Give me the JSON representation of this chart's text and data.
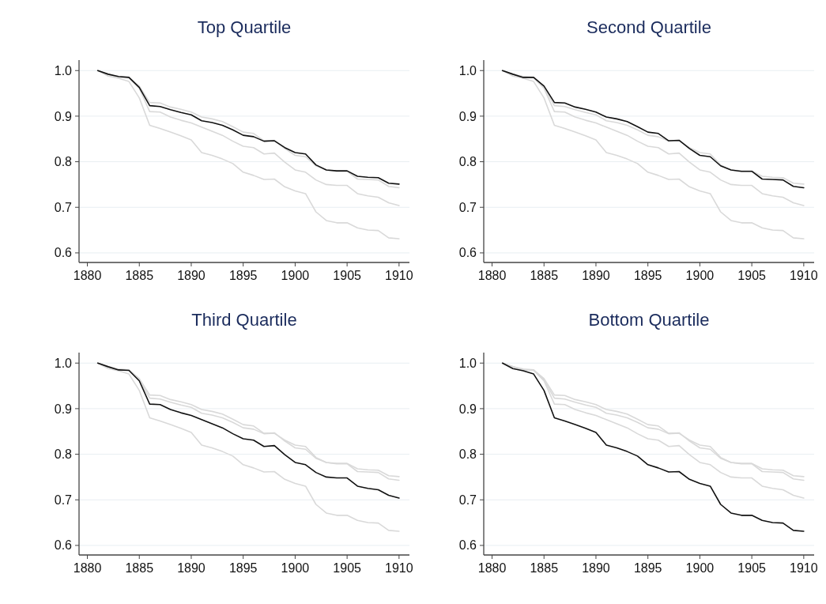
{
  "chart_data": [
    {
      "type": "line",
      "title": "Top Quartile",
      "x": [
        1881,
        1882,
        1883,
        1884,
        1885,
        1886,
        1887,
        1888,
        1889,
        1890,
        1891,
        1892,
        1893,
        1894,
        1895,
        1896,
        1897,
        1898,
        1899,
        1900,
        1901,
        1902,
        1903,
        1904,
        1905,
        1906,
        1907,
        1908,
        1909,
        1910
      ],
      "xlim": [
        1879.2,
        1911
      ],
      "xticks": [
        1880,
        1885,
        1890,
        1895,
        1900,
        1905,
        1910
      ],
      "ylim": [
        0.579,
        1.023
      ],
      "yticks": [
        {
          "value": 0.6,
          "label": "0.6"
        },
        {
          "value": 0.7,
          "label": "0.7"
        },
        {
          "value": 0.8,
          "label": "0.8"
        },
        {
          "value": 0.9,
          "label": "0.9"
        },
        {
          "value": 1,
          "label": "1.0"
        }
      ],
      "grid": "y",
      "series": [
        {
          "color": "#d9d9d9",
          "values": [
            1.0,
            0.992,
            0.985,
            0.985,
            0.966,
            0.93,
            0.929,
            0.92,
            0.915,
            0.909,
            0.898,
            0.894,
            0.888,
            0.877,
            0.865,
            0.862,
            0.846,
            0.847,
            0.829,
            0.814,
            0.811,
            0.791,
            0.782,
            0.779,
            0.779,
            0.762,
            0.761,
            0.76,
            0.746,
            0.743
          ]
        },
        {
          "color": "#d9d9d9",
          "values": [
            1.0,
            0.992,
            0.985,
            0.984,
            0.961,
            0.91,
            0.909,
            0.898,
            0.891,
            0.885,
            0.876,
            0.867,
            0.858,
            0.845,
            0.834,
            0.831,
            0.817,
            0.819,
            0.799,
            0.782,
            0.777,
            0.76,
            0.75,
            0.748,
            0.748,
            0.73,
            0.725,
            0.722,
            0.71,
            0.704
          ]
        },
        {
          "color": "#d9d9d9",
          "values": [
            1.0,
            0.988,
            0.983,
            0.976,
            0.94,
            0.88,
            0.873,
            0.865,
            0.857,
            0.848,
            0.82,
            0.814,
            0.806,
            0.796,
            0.777,
            0.77,
            0.761,
            0.762,
            0.745,
            0.736,
            0.73,
            0.69,
            0.671,
            0.666,
            0.666,
            0.655,
            0.65,
            0.649,
            0.633,
            0.631
          ]
        },
        {
          "color": "#111111",
          "values": [
            1.0,
            0.992,
            0.987,
            0.985,
            0.963,
            0.923,
            0.921,
            0.914,
            0.908,
            0.903,
            0.89,
            0.886,
            0.88,
            0.87,
            0.858,
            0.855,
            0.845,
            0.846,
            0.831,
            0.82,
            0.817,
            0.793,
            0.782,
            0.78,
            0.78,
            0.768,
            0.766,
            0.765,
            0.753,
            0.751
          ]
        }
      ]
    },
    {
      "type": "line",
      "title": "Second Quartile",
      "x": [
        1881,
        1882,
        1883,
        1884,
        1885,
        1886,
        1887,
        1888,
        1889,
        1890,
        1891,
        1892,
        1893,
        1894,
        1895,
        1896,
        1897,
        1898,
        1899,
        1900,
        1901,
        1902,
        1903,
        1904,
        1905,
        1906,
        1907,
        1908,
        1909,
        1910
      ],
      "xlim": [
        1879.2,
        1911
      ],
      "xticks": [
        1880,
        1885,
        1890,
        1895,
        1900,
        1905,
        1910
      ],
      "ylim": [
        0.579,
        1.023
      ],
      "yticks": [
        {
          "value": 0.6,
          "label": "0.6"
        },
        {
          "value": 0.7,
          "label": "0.7"
        },
        {
          "value": 0.8,
          "label": "0.8"
        },
        {
          "value": 0.9,
          "label": "0.9"
        },
        {
          "value": 1,
          "label": "1.0"
        }
      ],
      "grid": "y",
      "series": [
        {
          "color": "#d9d9d9",
          "values": [
            1.0,
            0.992,
            0.987,
            0.985,
            0.963,
            0.923,
            0.921,
            0.914,
            0.908,
            0.903,
            0.89,
            0.886,
            0.88,
            0.87,
            0.858,
            0.855,
            0.845,
            0.846,
            0.831,
            0.82,
            0.817,
            0.793,
            0.782,
            0.78,
            0.78,
            0.768,
            0.766,
            0.765,
            0.753,
            0.751
          ]
        },
        {
          "color": "#d9d9d9",
          "values": [
            1.0,
            0.992,
            0.985,
            0.984,
            0.961,
            0.91,
            0.909,
            0.898,
            0.891,
            0.885,
            0.876,
            0.867,
            0.858,
            0.845,
            0.834,
            0.831,
            0.817,
            0.819,
            0.799,
            0.782,
            0.777,
            0.76,
            0.75,
            0.748,
            0.748,
            0.73,
            0.725,
            0.722,
            0.71,
            0.704
          ]
        },
        {
          "color": "#d9d9d9",
          "values": [
            1.0,
            0.988,
            0.983,
            0.976,
            0.94,
            0.88,
            0.873,
            0.865,
            0.857,
            0.848,
            0.82,
            0.814,
            0.806,
            0.796,
            0.777,
            0.77,
            0.761,
            0.762,
            0.745,
            0.736,
            0.73,
            0.69,
            0.671,
            0.666,
            0.666,
            0.655,
            0.65,
            0.649,
            0.633,
            0.631
          ]
        },
        {
          "color": "#111111",
          "values": [
            1.0,
            0.992,
            0.985,
            0.985,
            0.966,
            0.93,
            0.929,
            0.92,
            0.915,
            0.909,
            0.898,
            0.894,
            0.888,
            0.877,
            0.865,
            0.862,
            0.846,
            0.847,
            0.829,
            0.814,
            0.811,
            0.791,
            0.782,
            0.779,
            0.779,
            0.762,
            0.761,
            0.76,
            0.746,
            0.743
          ]
        }
      ]
    },
    {
      "type": "line",
      "title": "Third Quartile",
      "x": [
        1881,
        1882,
        1883,
        1884,
        1885,
        1886,
        1887,
        1888,
        1889,
        1890,
        1891,
        1892,
        1893,
        1894,
        1895,
        1896,
        1897,
        1898,
        1899,
        1900,
        1901,
        1902,
        1903,
        1904,
        1905,
        1906,
        1907,
        1908,
        1909,
        1910
      ],
      "xlim": [
        1879.2,
        1911
      ],
      "xticks": [
        1880,
        1885,
        1890,
        1895,
        1900,
        1905,
        1910
      ],
      "ylim": [
        0.579,
        1.023
      ],
      "yticks": [
        {
          "value": 0.6,
          "label": "0.6"
        },
        {
          "value": 0.7,
          "label": "0.7"
        },
        {
          "value": 0.8,
          "label": "0.8"
        },
        {
          "value": 0.9,
          "label": "0.9"
        },
        {
          "value": 1,
          "label": "1.0"
        }
      ],
      "grid": "y",
      "series": [
        {
          "color": "#d9d9d9",
          "values": [
            1.0,
            0.992,
            0.987,
            0.985,
            0.963,
            0.923,
            0.921,
            0.914,
            0.908,
            0.903,
            0.89,
            0.886,
            0.88,
            0.87,
            0.858,
            0.855,
            0.845,
            0.846,
            0.831,
            0.82,
            0.817,
            0.793,
            0.782,
            0.78,
            0.78,
            0.768,
            0.766,
            0.765,
            0.753,
            0.751
          ]
        },
        {
          "color": "#d9d9d9",
          "values": [
            1.0,
            0.992,
            0.985,
            0.985,
            0.966,
            0.93,
            0.929,
            0.92,
            0.915,
            0.909,
            0.898,
            0.894,
            0.888,
            0.877,
            0.865,
            0.862,
            0.846,
            0.847,
            0.829,
            0.814,
            0.811,
            0.791,
            0.782,
            0.779,
            0.779,
            0.762,
            0.761,
            0.76,
            0.746,
            0.743
          ]
        },
        {
          "color": "#d9d9d9",
          "values": [
            1.0,
            0.988,
            0.983,
            0.976,
            0.94,
            0.88,
            0.873,
            0.865,
            0.857,
            0.848,
            0.82,
            0.814,
            0.806,
            0.796,
            0.777,
            0.77,
            0.761,
            0.762,
            0.745,
            0.736,
            0.73,
            0.69,
            0.671,
            0.666,
            0.666,
            0.655,
            0.65,
            0.649,
            0.633,
            0.631
          ]
        },
        {
          "color": "#111111",
          "values": [
            1.0,
            0.992,
            0.985,
            0.984,
            0.961,
            0.91,
            0.909,
            0.898,
            0.891,
            0.885,
            0.876,
            0.867,
            0.858,
            0.845,
            0.834,
            0.831,
            0.817,
            0.819,
            0.799,
            0.782,
            0.777,
            0.76,
            0.75,
            0.748,
            0.748,
            0.73,
            0.725,
            0.722,
            0.71,
            0.704
          ]
        }
      ]
    },
    {
      "type": "line",
      "title": "Bottom Quartile",
      "x": [
        1881,
        1882,
        1883,
        1884,
        1885,
        1886,
        1887,
        1888,
        1889,
        1890,
        1891,
        1892,
        1893,
        1894,
        1895,
        1896,
        1897,
        1898,
        1899,
        1900,
        1901,
        1902,
        1903,
        1904,
        1905,
        1906,
        1907,
        1908,
        1909,
        1910
      ],
      "xlim": [
        1879.2,
        1911
      ],
      "xticks": [
        1880,
        1885,
        1890,
        1895,
        1900,
        1905,
        1910
      ],
      "ylim": [
        0.579,
        1.023
      ],
      "yticks": [
        {
          "value": 0.6,
          "label": "0.6"
        },
        {
          "value": 0.7,
          "label": "0.7"
        },
        {
          "value": 0.8,
          "label": "0.8"
        },
        {
          "value": 0.9,
          "label": "0.9"
        },
        {
          "value": 1,
          "label": "1.0"
        }
      ],
      "grid": "y",
      "series": [
        {
          "color": "#d9d9d9",
          "values": [
            1.0,
            0.992,
            0.987,
            0.985,
            0.963,
            0.923,
            0.921,
            0.914,
            0.908,
            0.903,
            0.89,
            0.886,
            0.88,
            0.87,
            0.858,
            0.855,
            0.845,
            0.846,
            0.831,
            0.82,
            0.817,
            0.793,
            0.782,
            0.78,
            0.78,
            0.768,
            0.766,
            0.765,
            0.753,
            0.751
          ]
        },
        {
          "color": "#d9d9d9",
          "values": [
            1.0,
            0.992,
            0.985,
            0.985,
            0.966,
            0.93,
            0.929,
            0.92,
            0.915,
            0.909,
            0.898,
            0.894,
            0.888,
            0.877,
            0.865,
            0.862,
            0.846,
            0.847,
            0.829,
            0.814,
            0.811,
            0.791,
            0.782,
            0.779,
            0.779,
            0.762,
            0.761,
            0.76,
            0.746,
            0.743
          ]
        },
        {
          "color": "#d9d9d9",
          "values": [
            1.0,
            0.992,
            0.985,
            0.984,
            0.961,
            0.91,
            0.909,
            0.898,
            0.891,
            0.885,
            0.876,
            0.867,
            0.858,
            0.845,
            0.834,
            0.831,
            0.817,
            0.819,
            0.799,
            0.782,
            0.777,
            0.76,
            0.75,
            0.748,
            0.748,
            0.73,
            0.725,
            0.722,
            0.71,
            0.704
          ]
        },
        {
          "color": "#111111",
          "values": [
            1.0,
            0.988,
            0.983,
            0.976,
            0.94,
            0.88,
            0.873,
            0.865,
            0.857,
            0.848,
            0.82,
            0.814,
            0.806,
            0.796,
            0.777,
            0.77,
            0.761,
            0.762,
            0.745,
            0.736,
            0.73,
            0.69,
            0.671,
            0.666,
            0.666,
            0.655,
            0.65,
            0.649,
            0.633,
            0.631
          ]
        }
      ]
    }
  ]
}
